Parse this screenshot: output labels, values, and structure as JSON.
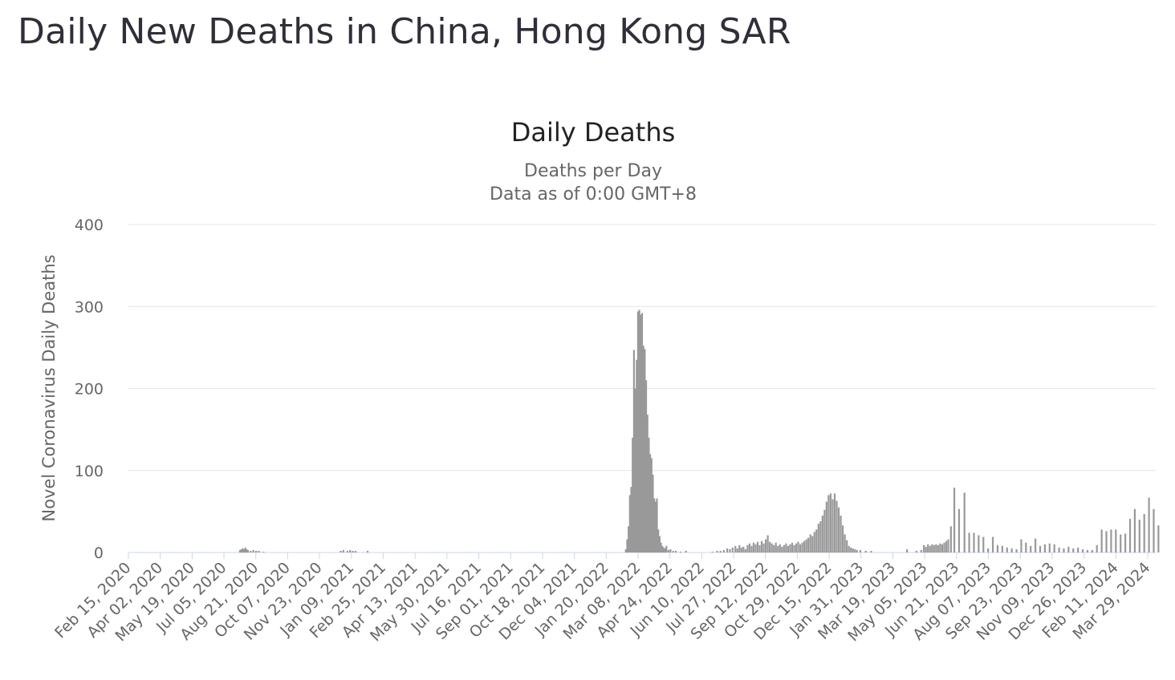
{
  "page": {
    "title": "Daily New Deaths in China, Hong Kong SAR"
  },
  "chart_data": {
    "type": "bar",
    "title": "Daily Deaths",
    "subtitle": "Deaths per Day",
    "subtitle2": "Data as of 0:00 GMT+8",
    "xlabel": "",
    "ylabel": "Novel Coronavirus Daily Deaths",
    "ylim": [
      0,
      400
    ],
    "yticks": [
      0,
      100,
      200,
      300,
      400
    ],
    "grid": true,
    "legend": "none",
    "bar_color": "#999999",
    "x_start": "2020-02-15",
    "x_end": "2024-04-14",
    "xtick_labels": [
      "Feb 15, 2020",
      "Apr 02, 2020",
      "May 19, 2020",
      "Jul 05, 2020",
      "Aug 21, 2020",
      "Oct 07, 2020",
      "Nov 23, 2020",
      "Jan 09, 2021",
      "Feb 25, 2021",
      "Apr 13, 2021",
      "May 30, 2021",
      "Jul 16, 2021",
      "Sep 01, 2021",
      "Oct 18, 2021",
      "Dec 04, 2021",
      "Jan 20, 2022",
      "Mar 08, 2022",
      "Apr 24, 2022",
      "Jun 10, 2022",
      "Jul 27, 2022",
      "Sep 12, 2022",
      "Oct 29, 2022",
      "Dec 15, 2022",
      "Jan 31, 2023",
      "Mar 19, 2023",
      "May 05, 2023",
      "Jun 21, 2023",
      "Aug 07, 2023",
      "Sep 23, 2023",
      "Nov 09, 2023",
      "Dec 26, 2023",
      "Feb 11, 2024",
      "Mar 29, 2024"
    ],
    "points": [
      [
        "2020-07-29",
        3
      ],
      [
        "2020-07-31",
        4
      ],
      [
        "2020-08-02",
        5
      ],
      [
        "2020-08-04",
        4
      ],
      [
        "2020-08-06",
        6
      ],
      [
        "2020-08-08",
        4
      ],
      [
        "2020-08-10",
        3
      ],
      [
        "2020-08-14",
        2
      ],
      [
        "2020-08-18",
        3
      ],
      [
        "2020-08-22",
        2
      ],
      [
        "2020-08-26",
        2
      ],
      [
        "2020-09-02",
        1
      ],
      [
        "2020-12-25",
        2
      ],
      [
        "2020-12-29",
        3
      ],
      [
        "2021-01-04",
        2
      ],
      [
        "2021-01-08",
        3
      ],
      [
        "2021-01-12",
        2
      ],
      [
        "2021-01-16",
        2
      ],
      [
        "2021-02-03",
        2
      ],
      [
        "2022-02-20",
        4
      ],
      [
        "2022-02-22",
        16
      ],
      [
        "2022-02-24",
        32
      ],
      [
        "2022-02-26",
        70
      ],
      [
        "2022-02-28",
        80
      ],
      [
        "2022-03-02",
        140
      ],
      [
        "2022-03-04",
        247
      ],
      [
        "2022-03-06",
        200
      ],
      [
        "2022-03-08",
        235
      ],
      [
        "2022-03-10",
        294
      ],
      [
        "2022-03-12",
        296
      ],
      [
        "2022-03-14",
        290
      ],
      [
        "2022-03-16",
        292
      ],
      [
        "2022-03-18",
        252
      ],
      [
        "2022-03-20",
        248
      ],
      [
        "2022-03-22",
        210
      ],
      [
        "2022-03-24",
        168
      ],
      [
        "2022-03-26",
        140
      ],
      [
        "2022-03-28",
        120
      ],
      [
        "2022-03-30",
        115
      ],
      [
        "2022-04-01",
        95
      ],
      [
        "2022-04-03",
        66
      ],
      [
        "2022-04-05",
        62
      ],
      [
        "2022-04-07",
        66
      ],
      [
        "2022-04-09",
        28
      ],
      [
        "2022-04-11",
        20
      ],
      [
        "2022-04-13",
        12
      ],
      [
        "2022-04-15",
        8
      ],
      [
        "2022-04-17",
        6
      ],
      [
        "2022-04-19",
        5
      ],
      [
        "2022-04-21",
        8
      ],
      [
        "2022-04-24",
        3
      ],
      [
        "2022-04-27",
        4
      ],
      [
        "2022-05-01",
        2
      ],
      [
        "2022-05-05",
        2
      ],
      [
        "2022-05-12",
        1
      ],
      [
        "2022-05-20",
        2
      ],
      [
        "2022-06-28",
        1
      ],
      [
        "2022-07-05",
        2
      ],
      [
        "2022-07-10",
        2
      ],
      [
        "2022-07-15",
        3
      ],
      [
        "2022-07-20",
        5
      ],
      [
        "2022-07-24",
        4
      ],
      [
        "2022-07-28",
        6
      ],
      [
        "2022-08-01",
        8
      ],
      [
        "2022-08-04",
        5
      ],
      [
        "2022-08-07",
        9
      ],
      [
        "2022-08-10",
        6
      ],
      [
        "2022-08-13",
        7
      ],
      [
        "2022-08-16",
        4
      ],
      [
        "2022-08-19",
        9
      ],
      [
        "2022-08-22",
        11
      ],
      [
        "2022-08-25",
        8
      ],
      [
        "2022-08-28",
        12
      ],
      [
        "2022-08-31",
        10
      ],
      [
        "2022-09-03",
        13
      ],
      [
        "2022-09-06",
        9
      ],
      [
        "2022-09-09",
        14
      ],
      [
        "2022-09-12",
        11
      ],
      [
        "2022-09-15",
        16
      ],
      [
        "2022-09-18",
        21
      ],
      [
        "2022-09-21",
        13
      ],
      [
        "2022-09-24",
        11
      ],
      [
        "2022-09-27",
        9
      ],
      [
        "2022-09-30",
        12
      ],
      [
        "2022-10-03",
        8
      ],
      [
        "2022-10-06",
        10
      ],
      [
        "2022-10-09",
        7
      ],
      [
        "2022-10-12",
        9
      ],
      [
        "2022-10-15",
        11
      ],
      [
        "2022-10-18",
        8
      ],
      [
        "2022-10-21",
        10
      ],
      [
        "2022-10-24",
        12
      ],
      [
        "2022-10-27",
        9
      ],
      [
        "2022-10-30",
        11
      ],
      [
        "2022-11-02",
        13
      ],
      [
        "2022-11-05",
        10
      ],
      [
        "2022-11-08",
        12
      ],
      [
        "2022-11-11",
        14
      ],
      [
        "2022-11-14",
        16
      ],
      [
        "2022-11-17",
        18
      ],
      [
        "2022-11-20",
        22
      ],
      [
        "2022-11-23",
        20
      ],
      [
        "2022-11-26",
        25
      ],
      [
        "2022-11-29",
        28
      ],
      [
        "2022-12-02",
        35
      ],
      [
        "2022-12-05",
        38
      ],
      [
        "2022-12-08",
        45
      ],
      [
        "2022-12-11",
        52
      ],
      [
        "2022-12-14",
        62
      ],
      [
        "2022-12-17",
        70
      ],
      [
        "2022-12-20",
        72
      ],
      [
        "2022-12-23",
        65
      ],
      [
        "2022-12-26",
        72
      ],
      [
        "2022-12-29",
        63
      ],
      [
        "2023-01-01",
        55
      ],
      [
        "2023-01-04",
        45
      ],
      [
        "2023-01-07",
        33
      ],
      [
        "2023-01-10",
        22
      ],
      [
        "2023-01-13",
        15
      ],
      [
        "2023-01-16",
        8
      ],
      [
        "2023-01-19",
        6
      ],
      [
        "2023-01-22",
        5
      ],
      [
        "2023-01-25",
        4
      ],
      [
        "2023-01-28",
        3
      ],
      [
        "2023-02-02",
        3
      ],
      [
        "2023-02-10",
        2
      ],
      [
        "2023-02-18",
        2
      ],
      [
        "2023-04-12",
        4
      ],
      [
        "2023-04-26",
        2
      ],
      [
        "2023-05-03",
        3
      ],
      [
        "2023-05-07",
        9
      ],
      [
        "2023-05-10",
        7
      ],
      [
        "2023-05-13",
        10
      ],
      [
        "2023-05-16",
        8
      ],
      [
        "2023-05-19",
        10
      ],
      [
        "2023-05-22",
        9
      ],
      [
        "2023-05-25",
        10
      ],
      [
        "2023-05-28",
        9
      ],
      [
        "2023-05-31",
        11
      ],
      [
        "2023-06-03",
        10
      ],
      [
        "2023-06-06",
        12
      ],
      [
        "2023-06-09",
        14
      ],
      [
        "2023-06-12",
        16
      ],
      [
        "2023-06-16",
        32
      ],
      [
        "2023-06-21",
        79
      ],
      [
        "2023-06-28",
        53
      ],
      [
        "2023-07-06",
        73
      ],
      [
        "2023-07-13",
        24
      ],
      [
        "2023-07-20",
        24
      ],
      [
        "2023-07-27",
        21
      ],
      [
        "2023-08-03",
        19
      ],
      [
        "2023-08-10",
        5
      ],
      [
        "2023-08-17",
        19
      ],
      [
        "2023-08-24",
        9
      ],
      [
        "2023-08-31",
        8
      ],
      [
        "2023-09-07",
        6
      ],
      [
        "2023-09-14",
        5
      ],
      [
        "2023-09-21",
        4
      ],
      [
        "2023-09-28",
        16
      ],
      [
        "2023-10-05",
        12
      ],
      [
        "2023-10-12",
        8
      ],
      [
        "2023-10-19",
        17
      ],
      [
        "2023-10-26",
        8
      ],
      [
        "2023-11-02",
        10
      ],
      [
        "2023-11-09",
        11
      ],
      [
        "2023-11-16",
        10
      ],
      [
        "2023-11-23",
        6
      ],
      [
        "2023-11-30",
        5
      ],
      [
        "2023-12-07",
        7
      ],
      [
        "2023-12-14",
        5
      ],
      [
        "2023-12-21",
        6
      ],
      [
        "2023-12-28",
        4
      ],
      [
        "2024-01-04",
        3
      ],
      [
        "2024-01-11",
        3
      ],
      [
        "2024-01-18",
        9
      ],
      [
        "2024-01-25",
        28
      ],
      [
        "2024-02-01",
        26
      ],
      [
        "2024-02-08",
        28
      ],
      [
        "2024-02-15",
        28
      ],
      [
        "2024-02-22",
        22
      ],
      [
        "2024-02-29",
        23
      ],
      [
        "2024-03-07",
        41
      ],
      [
        "2024-03-14",
        53
      ],
      [
        "2024-03-21",
        40
      ],
      [
        "2024-03-28",
        47
      ],
      [
        "2024-04-04",
        67
      ],
      [
        "2024-04-11",
        53
      ],
      [
        "2024-04-18",
        33
      ]
    ]
  }
}
